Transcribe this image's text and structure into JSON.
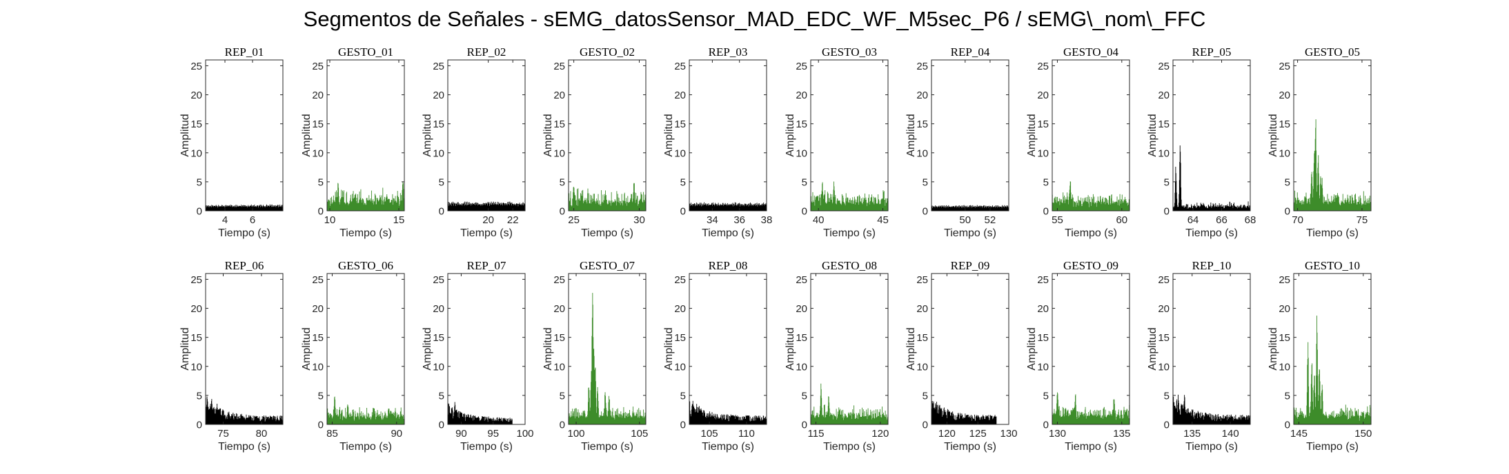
{
  "figure_title": "Segmentos de Señales - sEMG_datosSensor_MAD_EDC_WF_M5sec_P6 / sEMG\\_nom\\_FFC",
  "colors": {
    "rep": "#000000",
    "gesto": "#3d8c2a",
    "axis": "#262626"
  },
  "chart_data": [
    {
      "title": "REP_01",
      "type": "area",
      "color": "rep",
      "xlim": [
        2.6,
        8.2
      ],
      "xticks": [
        4,
        6
      ],
      "ylim": [
        0,
        26
      ],
      "yticks": [
        0,
        5,
        10,
        15,
        20,
        25
      ],
      "xlabel": "Tiempo (s)",
      "ylabel": "Amplitud",
      "span": [
        2.6,
        8.2
      ],
      "base": 0.9,
      "peaks": [],
      "pattern": "regular"
    },
    {
      "title": "GESTO_01",
      "type": "area",
      "color": "gesto",
      "xlim": [
        9.8,
        15.4
      ],
      "xticks": [
        10,
        15
      ],
      "ylim": [
        0,
        26
      ],
      "yticks": [
        0,
        5,
        10,
        15,
        20,
        25
      ],
      "xlabel": "Tiempo (s)",
      "ylabel": "Amplitud",
      "span": [
        9.8,
        15.4
      ],
      "base": 2.6,
      "peaks": [
        [
          10.6,
          5.8
        ],
        [
          15.3,
          6
        ]
      ],
      "pattern": "noise"
    },
    {
      "title": "REP_02",
      "type": "area",
      "color": "rep",
      "xlim": [
        16.7,
        23.0
      ],
      "xticks": [
        20,
        22
      ],
      "ylim": [
        0,
        26
      ],
      "yticks": [
        0,
        5,
        10,
        15,
        20,
        25
      ],
      "xlabel": "Tiempo (s)",
      "ylabel": "Amplitud",
      "span": [
        16.7,
        23.0
      ],
      "base": 1.3,
      "peaks": [],
      "pattern": "regular"
    },
    {
      "title": "GESTO_02",
      "type": "area",
      "color": "gesto",
      "xlim": [
        24.6,
        30.5
      ],
      "xticks": [
        25,
        30
      ],
      "ylim": [
        0,
        26
      ],
      "yticks": [
        0,
        5,
        10,
        15,
        20,
        25
      ],
      "xlabel": "Tiempo (s)",
      "ylabel": "Amplitud",
      "span": [
        24.6,
        30.5
      ],
      "base": 2.5,
      "peaks": [
        [
          25.0,
          5.2
        ],
        [
          29.6,
          6.0
        ]
      ],
      "pattern": "noise"
    },
    {
      "title": "REP_03",
      "type": "area",
      "color": "rep",
      "xlim": [
        32.3,
        38.0
      ],
      "xticks": [
        34,
        36,
        38
      ],
      "ylim": [
        0,
        26
      ],
      "yticks": [
        0,
        5,
        10,
        15,
        20,
        25
      ],
      "xlabel": "Tiempo (s)",
      "ylabel": "Amplitud",
      "span": [
        32.3,
        38.0
      ],
      "base": 1.2,
      "peaks": [],
      "pattern": "regular"
    },
    {
      "title": "GESTO_03",
      "type": "area",
      "color": "gesto",
      "xlim": [
        39.4,
        45.4
      ],
      "xticks": [
        40,
        45
      ],
      "ylim": [
        0,
        26
      ],
      "yticks": [
        0,
        5,
        10,
        15,
        20,
        25
      ],
      "xlabel": "Tiempo (s)",
      "ylabel": "Amplitud",
      "span": [
        39.4,
        45.4
      ],
      "base": 2.4,
      "peaks": [
        [
          40.3,
          5.8
        ],
        [
          41.2,
          5.5
        ]
      ],
      "pattern": "noise"
    },
    {
      "title": "REP_04",
      "type": "area",
      "color": "rep",
      "xlim": [
        47.3,
        53.5
      ],
      "xticks": [
        50,
        52
      ],
      "ylim": [
        0,
        26
      ],
      "yticks": [
        0,
        5,
        10,
        15,
        20,
        25
      ],
      "xlabel": "Tiempo (s)",
      "ylabel": "Amplitud",
      "span": [
        47.3,
        53.5
      ],
      "base": 0.8,
      "peaks": [],
      "pattern": "regular"
    },
    {
      "title": "GESTO_04",
      "type": "area",
      "color": "gesto",
      "xlim": [
        54.6,
        60.6
      ],
      "xticks": [
        55,
        60
      ],
      "ylim": [
        0,
        26
      ],
      "yticks": [
        0,
        5,
        10,
        15,
        20,
        25
      ],
      "xlabel": "Tiempo (s)",
      "ylabel": "Amplitud",
      "span": [
        54.6,
        60.6
      ],
      "base": 2.3,
      "peaks": [
        [
          56.0,
          5.8
        ]
      ],
      "pattern": "noise"
    },
    {
      "title": "REP_05",
      "type": "area",
      "color": "rep",
      "xlim": [
        62.6,
        68.0
      ],
      "xticks": [
        64,
        66,
        68
      ],
      "ylim": [
        0,
        26
      ],
      "yticks": [
        0,
        5,
        10,
        15,
        20,
        25
      ],
      "xlabel": "Tiempo (s)",
      "ylabel": "Amplitud",
      "span": [
        62.6,
        68.0
      ],
      "base": 1.1,
      "peaks": [
        [
          63.1,
          12
        ],
        [
          62.8,
          8
        ]
      ],
      "pattern": "noise"
    },
    {
      "title": "GESTO_05",
      "type": "area",
      "color": "gesto",
      "xlim": [
        69.7,
        75.7
      ],
      "xticks": [
        70,
        75
      ],
      "ylim": [
        0,
        26
      ],
      "yticks": [
        0,
        5,
        10,
        15,
        20,
        25
      ],
      "xlabel": "Tiempo (s)",
      "ylabel": "Amplitud",
      "span": [
        69.7,
        75.7
      ],
      "base": 2.3,
      "peaks": [
        [
          71.4,
          19
        ],
        [
          71.3,
          11.5
        ],
        [
          71.6,
          10
        ],
        [
          71.1,
          7.5
        ],
        [
          71.8,
          7
        ],
        [
          71.9,
          6
        ]
      ],
      "pattern": "noise"
    },
    {
      "title": "REP_06",
      "type": "area",
      "color": "rep",
      "xlim": [
        72.7,
        82.8
      ],
      "xticks": [
        75,
        80
      ],
      "ylim": [
        0,
        26
      ],
      "yticks": [
        0,
        5,
        10,
        15,
        20,
        25
      ],
      "xlabel": "Tiempo (s)",
      "ylabel": "Amplitud",
      "span": [
        72.7,
        82.8
      ],
      "base": 1.2,
      "peaks": [
        [
          72.9,
          5
        ],
        [
          73.5,
          4.6
        ],
        [
          74.2,
          4
        ]
      ],
      "pattern": "decay"
    },
    {
      "title": "GESTO_06",
      "type": "area",
      "color": "gesto",
      "xlim": [
        84.6,
        90.6
      ],
      "xticks": [
        85,
        90
      ],
      "ylim": [
        0,
        26
      ],
      "yticks": [
        0,
        5,
        10,
        15,
        20,
        25
      ],
      "xlabel": "Tiempo (s)",
      "ylabel": "Amplitud",
      "span": [
        84.6,
        90.6
      ],
      "base": 2.2,
      "peaks": [
        [
          85.2,
          5.6
        ],
        [
          86.2,
          4.5
        ]
      ],
      "pattern": "noise"
    },
    {
      "title": "REP_07",
      "type": "area",
      "color": "rep",
      "xlim": [
        87.9,
        100.0
      ],
      "xticks": [
        90,
        95,
        100
      ],
      "ylim": [
        0,
        26
      ],
      "yticks": [
        0,
        5,
        10,
        15,
        20,
        25
      ],
      "xlabel": "Tiempo (s)",
      "ylabel": "Amplitud",
      "span": [
        87.9,
        98.0
      ],
      "base": 1.0,
      "peaks": [
        [
          89.0,
          4.2
        ],
        [
          88.5,
          3.5
        ]
      ],
      "pattern": "decay"
    },
    {
      "title": "GESTO_07",
      "type": "area",
      "color": "gesto",
      "xlim": [
        99.4,
        105.5
      ],
      "xticks": [
        100,
        105
      ],
      "ylim": [
        0,
        26
      ],
      "yticks": [
        0,
        5,
        10,
        15,
        20,
        25
      ],
      "xlabel": "Tiempo (s)",
      "ylabel": "Amplitud",
      "span": [
        99.4,
        105.5
      ],
      "base": 2.3,
      "peaks": [
        [
          101.3,
          26
        ],
        [
          101.4,
          16
        ],
        [
          101.5,
          12
        ],
        [
          101.2,
          10
        ],
        [
          101.0,
          7.5
        ],
        [
          101.7,
          7
        ],
        [
          102.3,
          6.5
        ],
        [
          102.6,
          5.5
        ]
      ],
      "pattern": "noise"
    },
    {
      "title": "REP_08",
      "type": "area",
      "color": "rep",
      "xlim": [
        102.3,
        112.7
      ],
      "xticks": [
        105,
        110
      ],
      "ylim": [
        0,
        26
      ],
      "yticks": [
        0,
        5,
        10,
        15,
        20,
        25
      ],
      "xlabel": "Tiempo (s)",
      "ylabel": "Amplitud",
      "span": [
        102.3,
        112.7
      ],
      "base": 1.2,
      "peaks": [
        [
          102.8,
          4.2
        ],
        [
          103.6,
          3.6
        ]
      ],
      "pattern": "decay"
    },
    {
      "title": "GESTO_08",
      "type": "area",
      "color": "gesto",
      "xlim": [
        114.6,
        120.6
      ],
      "xticks": [
        115,
        120
      ],
      "ylim": [
        0,
        26
      ],
      "yticks": [
        0,
        5,
        10,
        15,
        20,
        25
      ],
      "xlabel": "Tiempo (s)",
      "ylabel": "Amplitud",
      "span": [
        114.6,
        120.6
      ],
      "base": 2.3,
      "peaks": [
        [
          115.4,
          7.5
        ],
        [
          116.0,
          5.5
        ]
      ],
      "pattern": "noise"
    },
    {
      "title": "REP_09",
      "type": "area",
      "color": "rep",
      "xlim": [
        117.5,
        130.0
      ],
      "xticks": [
        120,
        125,
        130
      ],
      "ylim": [
        0,
        26
      ],
      "yticks": [
        0,
        5,
        10,
        15,
        20,
        25
      ],
      "xlabel": "Tiempo (s)",
      "ylabel": "Amplitud",
      "span": [
        117.5,
        128.0
      ],
      "base": 1.3,
      "peaks": [
        [
          118.8,
          4.3
        ],
        [
          118.2,
          3.4
        ]
      ],
      "pattern": "decay"
    },
    {
      "title": "GESTO_09",
      "type": "area",
      "color": "gesto",
      "xlim": [
        129.6,
        135.6
      ],
      "xticks": [
        130,
        135
      ],
      "ylim": [
        0,
        26
      ],
      "yticks": [
        0,
        5,
        10,
        15,
        20,
        25
      ],
      "xlabel": "Tiempo (s)",
      "ylabel": "Amplitud",
      "span": [
        129.6,
        135.6
      ],
      "base": 2.5,
      "peaks": [
        [
          130.0,
          7.2
        ],
        [
          131.4,
          6
        ],
        [
          134.4,
          5.8
        ]
      ],
      "pattern": "noise"
    },
    {
      "title": "REP_10",
      "type": "area",
      "color": "rep",
      "xlim": [
        132.5,
        142.6
      ],
      "xticks": [
        135,
        140
      ],
      "ylim": [
        0,
        26
      ],
      "yticks": [
        0,
        5,
        10,
        15,
        20,
        25
      ],
      "xlabel": "Tiempo (s)",
      "ylabel": "Amplitud",
      "span": [
        132.5,
        142.6
      ],
      "base": 1.3,
      "peaks": [
        [
          133.2,
          5.5
        ],
        [
          134.0,
          5.8
        ]
      ],
      "pattern": "decay"
    },
    {
      "title": "GESTO_10",
      "type": "area",
      "color": "gesto",
      "xlim": [
        144.6,
        150.6
      ],
      "xticks": [
        145,
        150
      ],
      "ylim": [
        0,
        26
      ],
      "yticks": [
        0,
        5,
        10,
        15,
        20,
        25
      ],
      "xlabel": "Tiempo (s)",
      "ylabel": "Amplitud",
      "span": [
        144.6,
        150.6
      ],
      "base": 2.3,
      "peaks": [
        [
          146.4,
          20.5
        ],
        [
          145.7,
          15
        ],
        [
          146.0,
          12.5
        ],
        [
          146.6,
          12
        ],
        [
          146.2,
          10
        ],
        [
          146.8,
          8
        ]
      ],
      "pattern": "noise"
    }
  ]
}
